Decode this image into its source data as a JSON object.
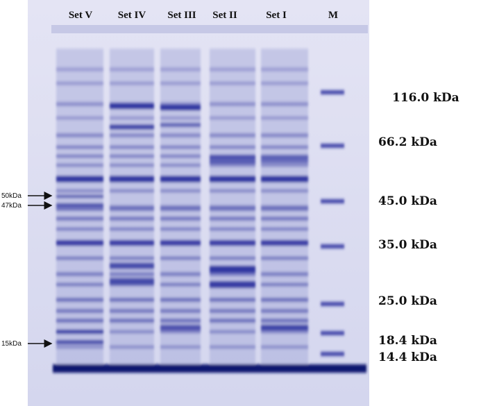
{
  "lanes": [
    "Set V",
    "Set IV",
    "Set III",
    "Set II",
    "Set I",
    "M"
  ],
  "markers": [
    "116.0 kDa",
    "66.2 kDa",
    "45.0 kDa",
    "35.0 kDa",
    "25.0 kDa",
    "18.4 kDa",
    "14.4 kDa"
  ],
  "annotations": [
    "50kDa",
    "47kDa",
    "15kDa"
  ]
}
